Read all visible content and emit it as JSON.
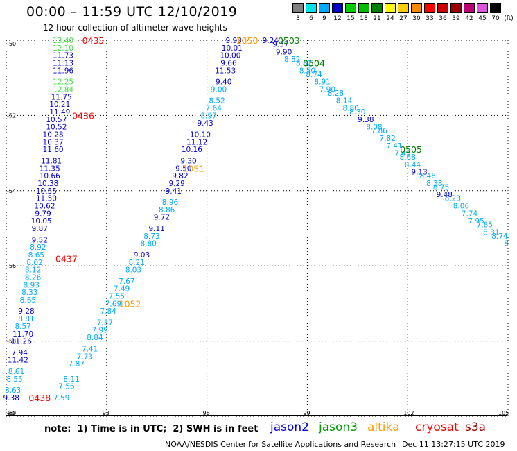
{
  "header": {
    "title": "00:00 – 11:59 UTC 12/10/2019",
    "subtitle": "12 hour collection of altimeter wave heights"
  },
  "colorbar": {
    "unit_label": "(ft)",
    "entries": [
      {
        "label": "3",
        "color": "#7f7f7f"
      },
      {
        "label": "6",
        "color": "#00e5e5"
      },
      {
        "label": "9",
        "color": "#00aaff"
      },
      {
        "label": "12",
        "color": "#0000cc"
      },
      {
        "label": "15",
        "color": "#00cc00"
      },
      {
        "label": "18",
        "color": "#00bb00"
      },
      {
        "label": "21",
        "color": "#007f00"
      },
      {
        "label": "24",
        "color": "#ffff00"
      },
      {
        "label": "27",
        "color": "#ffcc00"
      },
      {
        "label": "30",
        "color": "#ff8800"
      },
      {
        "label": "33",
        "color": "#ff0000"
      },
      {
        "label": "36",
        "color": "#cc0000"
      },
      {
        "label": "39",
        "color": "#990000"
      },
      {
        "label": "42",
        "color": "#bb0077"
      },
      {
        "label": "45",
        "color": "#dd55dd"
      },
      {
        "label": "70",
        "color": "#000000"
      }
    ]
  },
  "map": {
    "lon_labels": [
      "90",
      "93",
      "96",
      "99",
      "102",
      "105"
    ],
    "lat_labels": [
      "-50",
      "-52",
      "-54",
      "-56",
      "-58",
      "-60"
    ],
    "lon_range": [
      90,
      105
    ],
    "lat_range": [
      -60,
      -50
    ],
    "level_colors": {
      "cyan": "#00aaff",
      "blue": "#0000cc",
      "lgreen": "#44dd44",
      "dgreen": "#007f00",
      "orange": "#ff9900",
      "red": "#ff0000"
    }
  },
  "tracks": [
    {
      "name": "track-west",
      "points": [
        {
          "lon": 91.7,
          "lat": -50.0,
          "v": "13.40",
          "c": "lgreen"
        },
        {
          "lon": 91.7,
          "lat": -50.2,
          "v": "12.10",
          "c": "lgreen"
        },
        {
          "lon": 91.7,
          "lat": -50.4,
          "v": "11.73",
          "c": "blue"
        },
        {
          "lon": 91.7,
          "lat": -50.6,
          "v": "11.13",
          "c": "blue"
        },
        {
          "lon": 91.7,
          "lat": -50.8,
          "v": "11.96",
          "c": "blue"
        },
        {
          "lon": 91.7,
          "lat": -51.1,
          "v": "12.25",
          "c": "lgreen"
        },
        {
          "lon": 91.7,
          "lat": -51.3,
          "v": "12.84",
          "c": "lgreen"
        },
        {
          "lon": 91.65,
          "lat": -51.5,
          "v": "11.75",
          "c": "blue"
        },
        {
          "lon": 91.6,
          "lat": -51.7,
          "v": "10.21",
          "c": "blue"
        },
        {
          "lon": 91.6,
          "lat": -51.9,
          "v": "11.49",
          "c": "blue"
        },
        {
          "lon": 91.5,
          "lat": -52.1,
          "v": "10.57",
          "c": "blue"
        },
        {
          "lon": 91.5,
          "lat": -52.3,
          "v": "10.52",
          "c": "blue"
        },
        {
          "lon": 91.4,
          "lat": -52.5,
          "v": "10.28",
          "c": "blue"
        },
        {
          "lon": 91.4,
          "lat": -52.7,
          "v": "10.37",
          "c": "blue"
        },
        {
          "lon": 91.4,
          "lat": -52.9,
          "v": "11.60",
          "c": "blue"
        },
        {
          "lon": 91.35,
          "lat": -53.2,
          "v": "11.81",
          "c": "blue"
        },
        {
          "lon": 91.3,
          "lat": -53.4,
          "v": "11.35",
          "c": "blue"
        },
        {
          "lon": 91.3,
          "lat": -53.6,
          "v": "10.66",
          "c": "blue"
        },
        {
          "lon": 91.25,
          "lat": -53.8,
          "v": "10.38",
          "c": "blue"
        },
        {
          "lon": 91.2,
          "lat": -54.0,
          "v": "10.55",
          "c": "blue"
        },
        {
          "lon": 91.2,
          "lat": -54.2,
          "v": "11.50",
          "c": "blue"
        },
        {
          "lon": 91.15,
          "lat": -54.4,
          "v": "10.62",
          "c": "blue"
        },
        {
          "lon": 91.1,
          "lat": -54.6,
          "v": "9.79",
          "c": "blue"
        },
        {
          "lon": 91.05,
          "lat": -54.8,
          "v": "10.05",
          "c": "blue"
        },
        {
          "lon": 91.0,
          "lat": -55.0,
          "v": "9.87",
          "c": "blue"
        },
        {
          "lon": 91.0,
          "lat": -55.3,
          "v": "9.52",
          "c": "blue"
        },
        {
          "lon": 90.95,
          "lat": -55.5,
          "v": "8.92",
          "c": "cyan"
        },
        {
          "lon": 90.9,
          "lat": -55.7,
          "v": "8.65",
          "c": "cyan"
        },
        {
          "lon": 90.85,
          "lat": -55.9,
          "v": "8.02",
          "c": "cyan"
        },
        {
          "lon": 90.8,
          "lat": -56.1,
          "v": "8.12",
          "c": "cyan"
        },
        {
          "lon": 90.8,
          "lat": -56.3,
          "v": "8.26",
          "c": "cyan"
        },
        {
          "lon": 90.75,
          "lat": -56.5,
          "v": "8.93",
          "c": "cyan"
        },
        {
          "lon": 90.7,
          "lat": -56.7,
          "v": "8.33",
          "c": "cyan"
        },
        {
          "lon": 90.65,
          "lat": -56.9,
          "v": "8.65",
          "c": "cyan"
        },
        {
          "lon": 90.6,
          "lat": -57.2,
          "v": "9.28",
          "c": "blue"
        },
        {
          "lon": 90.6,
          "lat": -57.4,
          "v": "8.81",
          "c": "cyan"
        },
        {
          "lon": 90.5,
          "lat": -57.6,
          "v": "8.57",
          "c": "cyan"
        },
        {
          "lon": 90.5,
          "lat": -57.8,
          "v": "11.70",
          "c": "blue"
        },
        {
          "lon": 90.45,
          "lat": -58.0,
          "v": "11.26",
          "c": "blue"
        },
        {
          "lon": 90.4,
          "lat": -58.3,
          "v": "7.94",
          "c": "blue"
        },
        {
          "lon": 90.35,
          "lat": -58.5,
          "v": "11.42",
          "c": "blue"
        },
        {
          "lon": 90.3,
          "lat": -58.8,
          "v": "8.61",
          "c": "cyan"
        },
        {
          "lon": 90.25,
          "lat": -59.0,
          "v": "8.55",
          "c": "cyan"
        },
        {
          "lon": 90.2,
          "lat": -59.3,
          "v": "8.63",
          "c": "cyan"
        },
        {
          "lon": 90.15,
          "lat": -59.5,
          "v": "9.38",
          "c": "blue"
        }
      ]
    },
    {
      "name": "track-middle",
      "points": [
        {
          "lon": 96.8,
          "lat": -50.0,
          "v": "9.93",
          "c": "blue"
        },
        {
          "lon": 96.75,
          "lat": -50.2,
          "v": "10.01",
          "c": "blue"
        },
        {
          "lon": 96.7,
          "lat": -50.4,
          "v": "10.00",
          "c": "blue"
        },
        {
          "lon": 96.65,
          "lat": -50.6,
          "v": "9.66",
          "c": "blue"
        },
        {
          "lon": 96.55,
          "lat": -50.8,
          "v": "11.53",
          "c": "blue"
        },
        {
          "lon": 96.5,
          "lat": -51.1,
          "v": "9.40",
          "c": "blue"
        },
        {
          "lon": 96.35,
          "lat": -51.3,
          "v": "9.00",
          "c": "cyan"
        },
        {
          "lon": 96.3,
          "lat": -51.6,
          "v": "8.52",
          "c": "cyan"
        },
        {
          "lon": 96.2,
          "lat": -51.8,
          "v": "7.64",
          "c": "cyan"
        },
        {
          "lon": 96.05,
          "lat": -52.0,
          "v": "8.97",
          "c": "cyan"
        },
        {
          "lon": 95.95,
          "lat": -52.2,
          "v": "9.43",
          "c": "blue"
        },
        {
          "lon": 95.8,
          "lat": -52.5,
          "v": "10.10",
          "c": "blue"
        },
        {
          "lon": 95.7,
          "lat": -52.7,
          "v": "11.12",
          "c": "blue"
        },
        {
          "lon": 95.55,
          "lat": -52.9,
          "v": "10.16",
          "c": "blue"
        },
        {
          "lon": 95.45,
          "lat": -53.2,
          "v": "9.30",
          "c": "blue"
        },
        {
          "lon": 95.3,
          "lat": -53.4,
          "v": "9.50",
          "c": "blue"
        },
        {
          "lon": 95.2,
          "lat": -53.6,
          "v": "9.82",
          "c": "blue"
        },
        {
          "lon": 95.1,
          "lat": -53.8,
          "v": "9.29",
          "c": "blue"
        },
        {
          "lon": 95.0,
          "lat": -54.0,
          "v": "9.41",
          "c": "blue"
        },
        {
          "lon": 94.9,
          "lat": -54.3,
          "v": "8.96",
          "c": "cyan"
        },
        {
          "lon": 94.8,
          "lat": -54.5,
          "v": "8.86",
          "c": "cyan"
        },
        {
          "lon": 94.65,
          "lat": -54.7,
          "v": "9.72",
          "c": "blue"
        },
        {
          "lon": 94.5,
          "lat": -55.0,
          "v": "9.11",
          "c": "blue"
        },
        {
          "lon": 94.35,
          "lat": -55.2,
          "v": "8.73",
          "c": "cyan"
        },
        {
          "lon": 94.25,
          "lat": -55.4,
          "v": "8.80",
          "c": "cyan"
        },
        {
          "lon": 94.05,
          "lat": -55.7,
          "v": "9.03",
          "c": "blue"
        },
        {
          "lon": 93.9,
          "lat": -55.9,
          "v": "8.21",
          "c": "cyan"
        },
        {
          "lon": 93.8,
          "lat": -56.1,
          "v": "8.03",
          "c": "cyan"
        },
        {
          "lon": 93.6,
          "lat": -56.4,
          "v": "7.67",
          "c": "cyan"
        },
        {
          "lon": 93.45,
          "lat": -56.6,
          "v": "7.49",
          "c": "cyan"
        },
        {
          "lon": 93.3,
          "lat": -56.8,
          "v": "7.55",
          "c": "cyan"
        },
        {
          "lon": 93.2,
          "lat": -57.0,
          "v": "7.69",
          "c": "cyan"
        },
        {
          "lon": 93.05,
          "lat": -57.2,
          "v": "7.84",
          "c": "cyan"
        },
        {
          "lon": 92.95,
          "lat": -57.5,
          "v": "7.37",
          "c": "cyan"
        },
        {
          "lon": 92.8,
          "lat": -57.7,
          "v": "7.99",
          "c": "cyan"
        },
        {
          "lon": 92.65,
          "lat": -57.9,
          "v": "8.84",
          "c": "cyan"
        },
        {
          "lon": 92.5,
          "lat": -58.2,
          "v": "7.41",
          "c": "cyan"
        },
        {
          "lon": 92.35,
          "lat": -58.4,
          "v": "7.73",
          "c": "cyan"
        },
        {
          "lon": 92.1,
          "lat": -58.6,
          "v": "7.87",
          "c": "cyan"
        },
        {
          "lon": 91.95,
          "lat": -59.0,
          "v": "8.11",
          "c": "cyan"
        },
        {
          "lon": 91.8,
          "lat": -59.2,
          "v": "7.56",
          "c": "cyan"
        },
        {
          "lon": 91.65,
          "lat": -59.5,
          "v": "7.59",
          "c": "cyan"
        }
      ]
    },
    {
      "name": "track-east",
      "points": [
        {
          "lon": 97.9,
          "lat": -50.0,
          "v": "9.24",
          "c": "blue"
        },
        {
          "lon": 98.2,
          "lat": -50.1,
          "v": "9.37",
          "c": "blue"
        },
        {
          "lon": 98.3,
          "lat": -50.3,
          "v": "9.90",
          "c": "blue"
        },
        {
          "lon": 98.55,
          "lat": -50.5,
          "v": "8.82",
          "c": "cyan"
        },
        {
          "lon": 98.9,
          "lat": -50.6,
          "v": "8.82",
          "c": "cyan"
        },
        {
          "lon": 99.0,
          "lat": -50.8,
          "v": "8.50",
          "c": "cyan"
        },
        {
          "lon": 99.2,
          "lat": -50.9,
          "v": "8.74",
          "c": "cyan"
        },
        {
          "lon": 99.45,
          "lat": -51.1,
          "v": "8.91",
          "c": "cyan"
        },
        {
          "lon": 99.6,
          "lat": -51.3,
          "v": "7.90",
          "c": "cyan"
        },
        {
          "lon": 99.85,
          "lat": -51.4,
          "v": "8.28",
          "c": "cyan"
        },
        {
          "lon": 100.1,
          "lat": -51.6,
          "v": "8.14",
          "c": "cyan"
        },
        {
          "lon": 100.3,
          "lat": -51.8,
          "v": "8.80",
          "c": "cyan"
        },
        {
          "lon": 100.5,
          "lat": -51.9,
          "v": "8.30",
          "c": "cyan"
        },
        {
          "lon": 100.75,
          "lat": -52.1,
          "v": "9.38",
          "c": "blue"
        },
        {
          "lon": 101.0,
          "lat": -52.3,
          "v": "8.08",
          "c": "cyan"
        },
        {
          "lon": 101.15,
          "lat": -52.4,
          "v": "7.86",
          "c": "cyan"
        },
        {
          "lon": 101.4,
          "lat": -52.6,
          "v": "7.82",
          "c": "cyan"
        },
        {
          "lon": 101.6,
          "lat": -52.8,
          "v": "7.41",
          "c": "cyan"
        },
        {
          "lon": 101.85,
          "lat": -53.0,
          "v": "7.43",
          "c": "cyan"
        },
        {
          "lon": 102.0,
          "lat": -53.1,
          "v": "8.68",
          "c": "cyan"
        },
        {
          "lon": 102.15,
          "lat": -53.3,
          "v": "8.44",
          "c": "cyan"
        },
        {
          "lon": 102.35,
          "lat": -53.5,
          "v": "9.13",
          "c": "blue"
        },
        {
          "lon": 102.6,
          "lat": -53.6,
          "v": "8.46",
          "c": "cyan"
        },
        {
          "lon": 102.8,
          "lat": -53.8,
          "v": "8.38",
          "c": "cyan"
        },
        {
          "lon": 103.0,
          "lat": -53.9,
          "v": "8.75",
          "c": "cyan"
        },
        {
          "lon": 103.1,
          "lat": -54.1,
          "v": "9.48",
          "c": "blue"
        },
        {
          "lon": 103.35,
          "lat": -54.2,
          "v": "8.23",
          "c": "cyan"
        },
        {
          "lon": 103.6,
          "lat": -54.4,
          "v": "8.06",
          "c": "cyan"
        },
        {
          "lon": 103.85,
          "lat": -54.6,
          "v": "7.74",
          "c": "cyan"
        },
        {
          "lon": 104.05,
          "lat": -54.8,
          "v": "7.95",
          "c": "cyan"
        },
        {
          "lon": 104.3,
          "lat": -54.9,
          "v": "7.85",
          "c": "cyan"
        },
        {
          "lon": 104.5,
          "lat": -55.1,
          "v": "8.31",
          "c": "cyan"
        },
        {
          "lon": 104.75,
          "lat": -55.2,
          "v": "8.74",
          "c": "cyan"
        },
        {
          "lon": 104.95,
          "lat": -55.4,
          "v": "8",
          "c": "cyan"
        }
      ]
    }
  ],
  "time_labels": [
    {
      "text": "0435",
      "lon": 92.6,
      "lat": -50.0,
      "c": "red"
    },
    {
      "text": "0436",
      "lon": 92.3,
      "lat": -52.0,
      "c": "red"
    },
    {
      "text": "0437",
      "lon": 91.8,
      "lat": -55.8,
      "c": "red"
    },
    {
      "text": "0438",
      "lon": 91.0,
      "lat": -59.5,
      "c": "red"
    },
    {
      "text": "1050",
      "lon": 97.2,
      "lat": -50.0,
      "c": "orange"
    },
    {
      "text": "1051",
      "lon": 95.6,
      "lat": -53.4,
      "c": "orange"
    },
    {
      "text": "1052",
      "lon": 93.7,
      "lat": -57.0,
      "c": "orange"
    },
    {
      "text": "0503",
      "lon": 98.45,
      "lat": -50.0,
      "c": "dgreen"
    },
    {
      "text": "0504",
      "lon": 99.2,
      "lat": -50.6,
      "c": "dgreen"
    },
    {
      "text": "0505",
      "lon": 102.1,
      "lat": -52.9,
      "c": "dgreen"
    }
  ],
  "footer": {
    "note": "note:  1) Time is in UTC;  2) SWH is in feet",
    "satellites": [
      {
        "label": "jason2",
        "color": "#0000cc"
      },
      {
        "label": "jason3",
        "color": "#009900"
      },
      {
        "label": "altika",
        "color": "#ff9900"
      },
      {
        "label": "cryosat",
        "color": "#ff0000"
      },
      {
        "label": "s3a",
        "color": "#990000"
      }
    ],
    "credit": "NOAA/NESDIS Center for Satellite Applications and Research",
    "generated": "Dec 11 13:27:15 UTC 2019"
  }
}
